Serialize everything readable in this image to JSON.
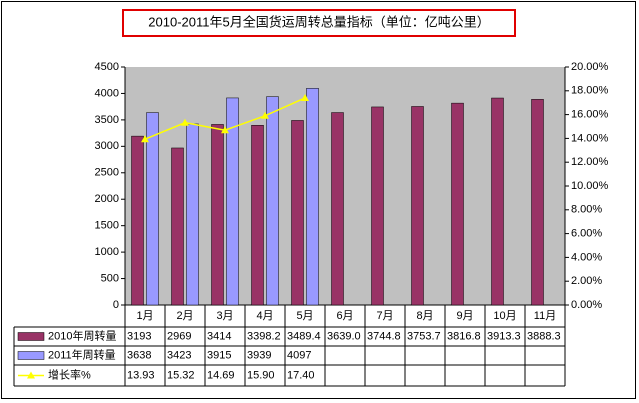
{
  "chart_data": {
    "type": "bar",
    "title": "2010-2011年5月全国货运周转总量指标（单位：亿吨公里）",
    "categories": [
      "1月",
      "2月",
      "3月",
      "4月",
      "5月",
      "6月",
      "7月",
      "8月",
      "9月",
      "10月",
      "11月"
    ],
    "series": [
      {
        "name": "2010年周转量",
        "color": "#993366",
        "values": [
          3193,
          2969,
          3414,
          3398.2,
          3489.4,
          3639.0,
          3744.8,
          3753.7,
          3816.8,
          3913.3,
          3888.3
        ],
        "value_labels": [
          "3193",
          "2969",
          "3414",
          "3398.2",
          "3489.4",
          "3639.0",
          "3744.8",
          "3753.7",
          "3816.8",
          "3913.3",
          "3888.3"
        ]
      },
      {
        "name": "2011年周转量",
        "color": "#9999ff",
        "values": [
          3638,
          3423,
          3915,
          3939,
          4097,
          null,
          null,
          null,
          null,
          null,
          null
        ]
      },
      {
        "name": "增长率%",
        "color": "#ffff00",
        "axis": "y2",
        "type": "line",
        "values": [
          13.93,
          15.32,
          14.69,
          15.9,
          17.4,
          null,
          null,
          null,
          null,
          null,
          null
        ],
        "value_labels": [
          "13.93",
          "15.32",
          "14.69",
          "15.90",
          "17.40",
          null,
          null,
          null,
          null,
          null,
          null
        ]
      }
    ],
    "ylim": [
      0,
      4500
    ],
    "yticks": [
      0,
      500,
      1000,
      1500,
      2000,
      2500,
      3000,
      3500,
      4000,
      4500
    ],
    "y2lim": [
      0,
      20
    ],
    "y2ticks": [
      {
        "value": 0,
        "label": "0.00%"
      },
      {
        "value": 2,
        "label": "2.00%"
      },
      {
        "value": 4,
        "label": "4.00%"
      },
      {
        "value": 6,
        "label": "6.00%"
      },
      {
        "value": 8,
        "label": "8.00%"
      },
      {
        "value": 10,
        "label": "10.00%"
      },
      {
        "value": 12,
        "label": "12.00%"
      },
      {
        "value": 14,
        "label": "14.00%"
      },
      {
        "value": 16,
        "label": "16.00%"
      },
      {
        "value": 18,
        "label": "18.00%"
      },
      {
        "value": 20,
        "label": "20.00%"
      }
    ],
    "grid": false
  }
}
